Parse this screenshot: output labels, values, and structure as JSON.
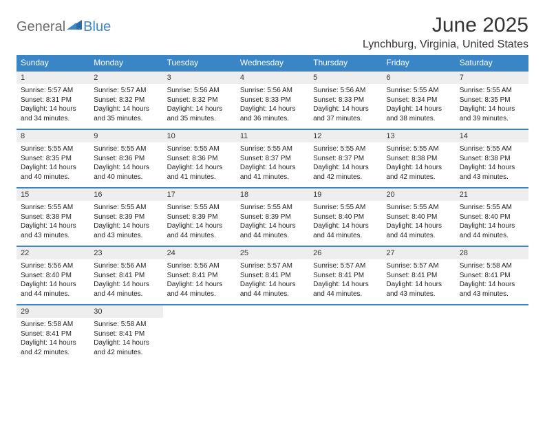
{
  "logo": {
    "general": "General",
    "blue": "Blue"
  },
  "title": "June 2025",
  "location": "Lynchburg, Virginia, United States",
  "colors": {
    "header_bg": "#3a85c6",
    "header_text": "#ffffff",
    "daynum_bg": "#eeeeee",
    "border": "#3a85c6",
    "page_bg": "#ffffff",
    "logo_gray": "#6b6b6b",
    "logo_blue": "#3a85c6"
  },
  "daysOfWeek": [
    "Sunday",
    "Monday",
    "Tuesday",
    "Wednesday",
    "Thursday",
    "Friday",
    "Saturday"
  ],
  "weeks": [
    [
      {
        "num": "1",
        "sunrise": "Sunrise: 5:57 AM",
        "sunset": "Sunset: 8:31 PM",
        "d1": "Daylight: 14 hours",
        "d2": "and 34 minutes."
      },
      {
        "num": "2",
        "sunrise": "Sunrise: 5:57 AM",
        "sunset": "Sunset: 8:32 PM",
        "d1": "Daylight: 14 hours",
        "d2": "and 35 minutes."
      },
      {
        "num": "3",
        "sunrise": "Sunrise: 5:56 AM",
        "sunset": "Sunset: 8:32 PM",
        "d1": "Daylight: 14 hours",
        "d2": "and 35 minutes."
      },
      {
        "num": "4",
        "sunrise": "Sunrise: 5:56 AM",
        "sunset": "Sunset: 8:33 PM",
        "d1": "Daylight: 14 hours",
        "d2": "and 36 minutes."
      },
      {
        "num": "5",
        "sunrise": "Sunrise: 5:56 AM",
        "sunset": "Sunset: 8:33 PM",
        "d1": "Daylight: 14 hours",
        "d2": "and 37 minutes."
      },
      {
        "num": "6",
        "sunrise": "Sunrise: 5:55 AM",
        "sunset": "Sunset: 8:34 PM",
        "d1": "Daylight: 14 hours",
        "d2": "and 38 minutes."
      },
      {
        "num": "7",
        "sunrise": "Sunrise: 5:55 AM",
        "sunset": "Sunset: 8:35 PM",
        "d1": "Daylight: 14 hours",
        "d2": "and 39 minutes."
      }
    ],
    [
      {
        "num": "8",
        "sunrise": "Sunrise: 5:55 AM",
        "sunset": "Sunset: 8:35 PM",
        "d1": "Daylight: 14 hours",
        "d2": "and 40 minutes."
      },
      {
        "num": "9",
        "sunrise": "Sunrise: 5:55 AM",
        "sunset": "Sunset: 8:36 PM",
        "d1": "Daylight: 14 hours",
        "d2": "and 40 minutes."
      },
      {
        "num": "10",
        "sunrise": "Sunrise: 5:55 AM",
        "sunset": "Sunset: 8:36 PM",
        "d1": "Daylight: 14 hours",
        "d2": "and 41 minutes."
      },
      {
        "num": "11",
        "sunrise": "Sunrise: 5:55 AM",
        "sunset": "Sunset: 8:37 PM",
        "d1": "Daylight: 14 hours",
        "d2": "and 41 minutes."
      },
      {
        "num": "12",
        "sunrise": "Sunrise: 5:55 AM",
        "sunset": "Sunset: 8:37 PM",
        "d1": "Daylight: 14 hours",
        "d2": "and 42 minutes."
      },
      {
        "num": "13",
        "sunrise": "Sunrise: 5:55 AM",
        "sunset": "Sunset: 8:38 PM",
        "d1": "Daylight: 14 hours",
        "d2": "and 42 minutes."
      },
      {
        "num": "14",
        "sunrise": "Sunrise: 5:55 AM",
        "sunset": "Sunset: 8:38 PM",
        "d1": "Daylight: 14 hours",
        "d2": "and 43 minutes."
      }
    ],
    [
      {
        "num": "15",
        "sunrise": "Sunrise: 5:55 AM",
        "sunset": "Sunset: 8:38 PM",
        "d1": "Daylight: 14 hours",
        "d2": "and 43 minutes."
      },
      {
        "num": "16",
        "sunrise": "Sunrise: 5:55 AM",
        "sunset": "Sunset: 8:39 PM",
        "d1": "Daylight: 14 hours",
        "d2": "and 43 minutes."
      },
      {
        "num": "17",
        "sunrise": "Sunrise: 5:55 AM",
        "sunset": "Sunset: 8:39 PM",
        "d1": "Daylight: 14 hours",
        "d2": "and 44 minutes."
      },
      {
        "num": "18",
        "sunrise": "Sunrise: 5:55 AM",
        "sunset": "Sunset: 8:39 PM",
        "d1": "Daylight: 14 hours",
        "d2": "and 44 minutes."
      },
      {
        "num": "19",
        "sunrise": "Sunrise: 5:55 AM",
        "sunset": "Sunset: 8:40 PM",
        "d1": "Daylight: 14 hours",
        "d2": "and 44 minutes."
      },
      {
        "num": "20",
        "sunrise": "Sunrise: 5:55 AM",
        "sunset": "Sunset: 8:40 PM",
        "d1": "Daylight: 14 hours",
        "d2": "and 44 minutes."
      },
      {
        "num": "21",
        "sunrise": "Sunrise: 5:55 AM",
        "sunset": "Sunset: 8:40 PM",
        "d1": "Daylight: 14 hours",
        "d2": "and 44 minutes."
      }
    ],
    [
      {
        "num": "22",
        "sunrise": "Sunrise: 5:56 AM",
        "sunset": "Sunset: 8:40 PM",
        "d1": "Daylight: 14 hours",
        "d2": "and 44 minutes."
      },
      {
        "num": "23",
        "sunrise": "Sunrise: 5:56 AM",
        "sunset": "Sunset: 8:41 PM",
        "d1": "Daylight: 14 hours",
        "d2": "and 44 minutes."
      },
      {
        "num": "24",
        "sunrise": "Sunrise: 5:56 AM",
        "sunset": "Sunset: 8:41 PM",
        "d1": "Daylight: 14 hours",
        "d2": "and 44 minutes."
      },
      {
        "num": "25",
        "sunrise": "Sunrise: 5:57 AM",
        "sunset": "Sunset: 8:41 PM",
        "d1": "Daylight: 14 hours",
        "d2": "and 44 minutes."
      },
      {
        "num": "26",
        "sunrise": "Sunrise: 5:57 AM",
        "sunset": "Sunset: 8:41 PM",
        "d1": "Daylight: 14 hours",
        "d2": "and 44 minutes."
      },
      {
        "num": "27",
        "sunrise": "Sunrise: 5:57 AM",
        "sunset": "Sunset: 8:41 PM",
        "d1": "Daylight: 14 hours",
        "d2": "and 43 minutes."
      },
      {
        "num": "28",
        "sunrise": "Sunrise: 5:58 AM",
        "sunset": "Sunset: 8:41 PM",
        "d1": "Daylight: 14 hours",
        "d2": "and 43 minutes."
      }
    ],
    [
      {
        "num": "29",
        "sunrise": "Sunrise: 5:58 AM",
        "sunset": "Sunset: 8:41 PM",
        "d1": "Daylight: 14 hours",
        "d2": "and 42 minutes."
      },
      {
        "num": "30",
        "sunrise": "Sunrise: 5:58 AM",
        "sunset": "Sunset: 8:41 PM",
        "d1": "Daylight: 14 hours",
        "d2": "and 42 minutes."
      },
      {
        "empty": true
      },
      {
        "empty": true
      },
      {
        "empty": true
      },
      {
        "empty": true
      },
      {
        "empty": true
      }
    ]
  ]
}
